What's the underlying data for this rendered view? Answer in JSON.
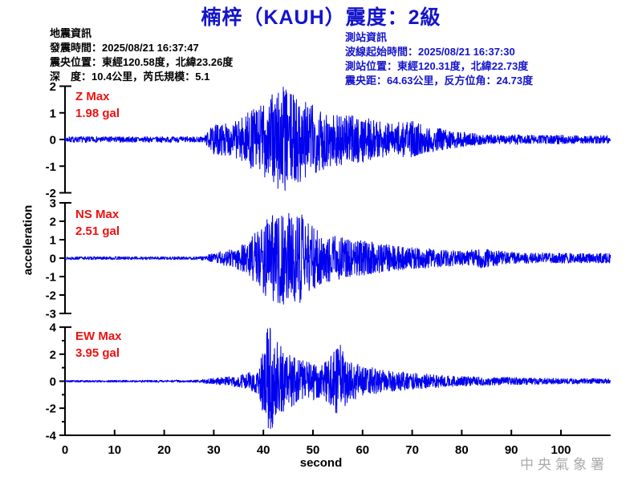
{
  "title": "楠梓（KAUH）震度：2級",
  "event_info": {
    "heading": "地震資訊",
    "lines": [
      "發震時間：2025/08/21 16:37:47",
      "震央位置：東經120.58度，北緯23.26度",
      "深　度：10.4公里，芮氏規模：5.1"
    ]
  },
  "station_info": {
    "heading": "測站資訊",
    "lines": [
      "波線起始時間：2025/08/21 16:37:30",
      "測站位置：東經120.31度，北緯22.73度",
      "震央距：64.63公里，反方位角：24.73度"
    ]
  },
  "watermark": "中央氣象署",
  "colors": {
    "title_blue": "#1414cc",
    "waveform_blue": "#0000ee",
    "max_label_red": "#ee1111",
    "axis_black": "#000000",
    "watermark_gray": "#aaaaaa"
  },
  "chart_data": {
    "type": "line",
    "title": "seismic acceleration waveforms",
    "xlabel": "second",
    "ylabel": "acceleration",
    "x_max": 110,
    "x_ticks": [
      0,
      10,
      20,
      30,
      40,
      50,
      60,
      70,
      80,
      90,
      100
    ],
    "grid": false,
    "channels": [
      {
        "name": "Z",
        "max_label": "Z Max",
        "max_value": "1.98 gal",
        "max_gal": 1.98,
        "ylim": [
          -2,
          2
        ],
        "yticks": [
          2,
          1,
          0,
          -1,
          -2
        ],
        "yticks_minor": [],
        "seed": 7,
        "envelope": [
          [
            0,
            0.1
          ],
          [
            28,
            0.1
          ],
          [
            30,
            0.5
          ],
          [
            34,
            0.55
          ],
          [
            37,
            0.9
          ],
          [
            40,
            1.2
          ],
          [
            42,
            1.5
          ],
          [
            43.5,
            1.98
          ],
          [
            45,
            1.55
          ],
          [
            47,
            1.45
          ],
          [
            50,
            1.15
          ],
          [
            53,
            0.95
          ],
          [
            57,
            0.8
          ],
          [
            60,
            0.75
          ],
          [
            63,
            0.6
          ],
          [
            66,
            0.55
          ],
          [
            70,
            0.6
          ],
          [
            73,
            0.45
          ],
          [
            76,
            0.35
          ],
          [
            80,
            0.25
          ],
          [
            84,
            0.18
          ],
          [
            88,
            0.15
          ],
          [
            92,
            0.17
          ],
          [
            96,
            0.14
          ],
          [
            100,
            0.16
          ],
          [
            105,
            0.13
          ],
          [
            110,
            0.14
          ]
        ]
      },
      {
        "name": "NS",
        "max_label": "NS Max",
        "max_value": "2.51 gal",
        "max_gal": 2.51,
        "ylim": [
          -3,
          3
        ],
        "yticks": [
          3,
          2,
          1,
          0,
          -1,
          -2,
          -3
        ],
        "yticks_minor": [],
        "seed": 13,
        "envelope": [
          [
            0,
            0.09
          ],
          [
            27,
            0.09
          ],
          [
            29,
            0.2
          ],
          [
            31,
            0.35
          ],
          [
            34,
            0.5
          ],
          [
            37,
            0.9
          ],
          [
            39,
            1.6
          ],
          [
            41,
            2.2
          ],
          [
            44,
            2.51
          ],
          [
            46,
            2.3
          ],
          [
            48,
            2.4
          ],
          [
            49,
            1.9
          ],
          [
            51,
            1.5
          ],
          [
            54,
            1.2
          ],
          [
            57,
            1.05
          ],
          [
            60,
            0.95
          ],
          [
            63,
            0.85
          ],
          [
            66,
            0.7
          ],
          [
            69,
            0.6
          ],
          [
            72,
            0.55
          ],
          [
            75,
            0.5
          ],
          [
            78,
            0.42
          ],
          [
            81,
            0.4
          ],
          [
            84,
            0.55
          ],
          [
            86,
            0.45
          ],
          [
            89,
            0.35
          ],
          [
            93,
            0.3
          ],
          [
            97,
            0.3
          ],
          [
            101,
            0.28
          ],
          [
            105,
            0.26
          ],
          [
            110,
            0.28
          ]
        ]
      },
      {
        "name": "EW",
        "max_label": "EW Max",
        "max_value": "3.95 gal",
        "max_gal": 3.95,
        "ylim": [
          -4,
          4
        ],
        "yticks": [
          4,
          2,
          0,
          -2,
          -4
        ],
        "yticks_minor": [
          3,
          1,
          -1,
          -3
        ],
        "seed": 5,
        "envelope": [
          [
            0,
            0.08
          ],
          [
            26,
            0.09
          ],
          [
            28,
            0.15
          ],
          [
            32,
            0.3
          ],
          [
            36,
            0.5
          ],
          [
            39,
            0.9
          ],
          [
            41,
            3.95
          ],
          [
            42.5,
            3.2
          ],
          [
            44,
            2.4
          ],
          [
            46,
            1.8
          ],
          [
            48,
            1.6
          ],
          [
            50,
            1.4
          ],
          [
            52,
            1.3
          ],
          [
            54,
            2.0
          ],
          [
            55.5,
            2.6
          ],
          [
            57,
            1.5
          ],
          [
            60,
            1.1
          ],
          [
            63,
            0.9
          ],
          [
            66,
            0.75
          ],
          [
            70,
            0.6
          ],
          [
            74,
            0.5
          ],
          [
            78,
            0.4
          ],
          [
            82,
            0.35
          ],
          [
            86,
            0.3
          ],
          [
            90,
            0.28
          ],
          [
            95,
            0.25
          ],
          [
            100,
            0.22
          ],
          [
            105,
            0.2
          ],
          [
            110,
            0.2
          ]
        ]
      }
    ]
  }
}
